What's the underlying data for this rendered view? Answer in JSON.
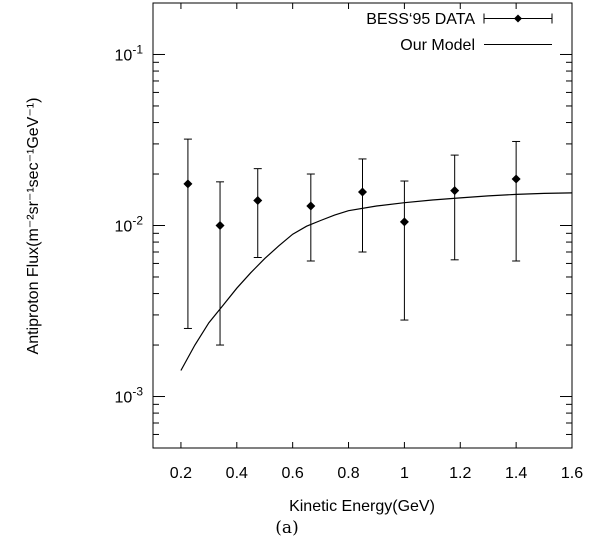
{
  "chart_data": {
    "type": "scatter",
    "xlabel": "Kinetic Energy(GeV)",
    "ylabel": "Antiproton Flux(m⁻²sr⁻¹sec⁻¹GeV⁻¹)",
    "caption": "(a)",
    "xlim": [
      0.1,
      1.6
    ],
    "ylim": [
      0.0005,
      0.2
    ],
    "yscale": "log",
    "x_ticks": [
      {
        "value": 0.2,
        "label": "0.2"
      },
      {
        "value": 0.4,
        "label": "0.4"
      },
      {
        "value": 0.6,
        "label": "0.6"
      },
      {
        "value": 0.8,
        "label": "0.8"
      },
      {
        "value": 1.0,
        "label": "1"
      },
      {
        "value": 1.2,
        "label": "1.2"
      },
      {
        "value": 1.4,
        "label": "1.4"
      },
      {
        "value": 1.6,
        "label": "1.6"
      }
    ],
    "y_ticks": [
      {
        "value": 0.001,
        "base": "10",
        "exp": "-3"
      },
      {
        "value": 0.01,
        "base": "10",
        "exp": "-2"
      },
      {
        "value": 0.1,
        "base": "10",
        "exp": "-1"
      }
    ],
    "legend_position": "top-right",
    "series": [
      {
        "name": "BESS‘95 DATA",
        "kind": "points_with_errorbars",
        "marker": "diamond",
        "points": [
          {
            "x": 0.225,
            "y": 0.0175,
            "ylo": 0.0025,
            "yhi": 0.032
          },
          {
            "x": 0.34,
            "y": 0.01,
            "ylo": 0.002,
            "yhi": 0.018
          },
          {
            "x": 0.475,
            "y": 0.014,
            "ylo": 0.0065,
            "yhi": 0.0215
          },
          {
            "x": 0.665,
            "y": 0.013,
            "ylo": 0.0062,
            "yhi": 0.02
          },
          {
            "x": 0.85,
            "y": 0.0157,
            "ylo": 0.007,
            "yhi": 0.0245
          },
          {
            "x": 1.0,
            "y": 0.0105,
            "ylo": 0.0028,
            "yhi": 0.0182
          },
          {
            "x": 1.18,
            "y": 0.016,
            "ylo": 0.0063,
            "yhi": 0.0258
          },
          {
            "x": 1.4,
            "y": 0.0187,
            "ylo": 0.0062,
            "yhi": 0.031
          }
        ]
      },
      {
        "name": "Our Model",
        "kind": "line",
        "points": [
          {
            "x": 0.2,
            "y": 0.00142
          },
          {
            "x": 0.25,
            "y": 0.002
          },
          {
            "x": 0.3,
            "y": 0.0027
          },
          {
            "x": 0.35,
            "y": 0.0034
          },
          {
            "x": 0.4,
            "y": 0.0043
          },
          {
            "x": 0.45,
            "y": 0.0053
          },
          {
            "x": 0.5,
            "y": 0.0064
          },
          {
            "x": 0.55,
            "y": 0.0076
          },
          {
            "x": 0.6,
            "y": 0.0089
          },
          {
            "x": 0.65,
            "y": 0.0099
          },
          {
            "x": 0.7,
            "y": 0.0107
          },
          {
            "x": 0.75,
            "y": 0.0115
          },
          {
            "x": 0.8,
            "y": 0.0122
          },
          {
            "x": 0.9,
            "y": 0.013
          },
          {
            "x": 1.0,
            "y": 0.0136
          },
          {
            "x": 1.1,
            "y": 0.0141
          },
          {
            "x": 1.2,
            "y": 0.0145
          },
          {
            "x": 1.3,
            "y": 0.0149
          },
          {
            "x": 1.4,
            "y": 0.0152
          },
          {
            "x": 1.5,
            "y": 0.0154
          },
          {
            "x": 1.6,
            "y": 0.0155
          }
        ]
      }
    ]
  }
}
